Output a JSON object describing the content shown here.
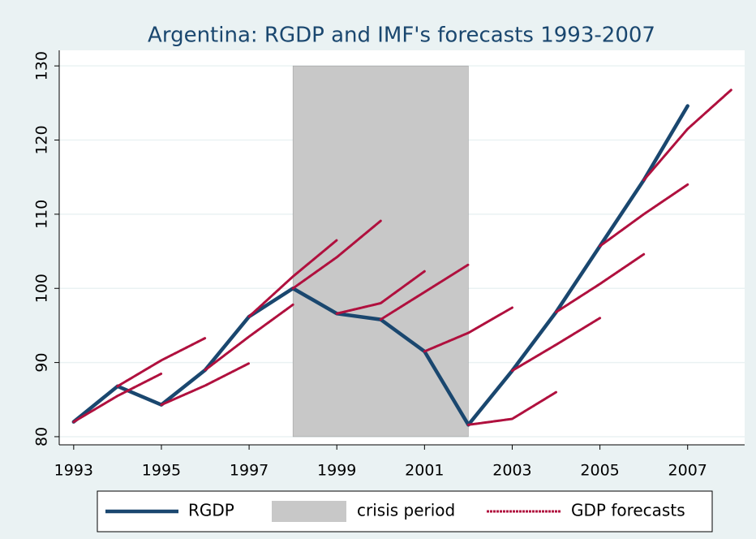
{
  "chart_data": {
    "type": "line",
    "title": "Argentina: RGDP and IMF's forecasts 1993-2007",
    "xlim": [
      1992.67,
      2008.3
    ],
    "ylim": [
      78.9,
      132.1
    ],
    "xticks": [
      1993,
      1995,
      1997,
      1999,
      2001,
      2003,
      2005,
      2007
    ],
    "yticks": [
      80,
      90,
      100,
      110,
      120,
      130
    ],
    "grid": true,
    "shaded": {
      "name": "crisis period",
      "start": 1998,
      "end": 2002,
      "color": "#c8c8c8"
    },
    "series": [
      {
        "name": "RGDP",
        "color": "#1a476f",
        "x": [
          1993,
          1994,
          1995,
          1996,
          1997,
          1998,
          1999,
          2000,
          2001,
          2002,
          2003,
          2004,
          2005,
          2006,
          2007
        ],
        "values": [
          82,
          86.8,
          84.3,
          89,
          96.2,
          100,
          96.6,
          95.8,
          91.5,
          81.6,
          88.9,
          96.8,
          105.7,
          114.6,
          124.6
        ]
      },
      {
        "name": "GDP forecasts",
        "color": "#b0103e",
        "x": [
          1993,
          1994,
          1995,
          null,
          1994,
          1995,
          1996,
          null,
          1995,
          1996,
          1997,
          null,
          1996,
          1997,
          1998,
          null,
          1997,
          1998,
          1999,
          null,
          1998,
          1999,
          2000,
          null,
          1999,
          2000,
          2001,
          null,
          2000,
          2001,
          2002,
          null,
          2001,
          2002,
          2003,
          null,
          2002,
          2003,
          2004,
          null,
          2003,
          2004,
          2005,
          null,
          2004,
          2005,
          2006,
          null,
          2005,
          2006,
          2007,
          null,
          2006,
          2007,
          2008
        ],
        "values": [
          82,
          85.5,
          88.5,
          null,
          86.8,
          90.3,
          93.3,
          null,
          84.3,
          86.9,
          89.9,
          null,
          89,
          93.5,
          97.8,
          null,
          96.2,
          101.6,
          106.5,
          null,
          100,
          104.2,
          109.1,
          null,
          96.6,
          98,
          102.3,
          null,
          95.8,
          99.5,
          103.2,
          null,
          91.5,
          94,
          97.4,
          null,
          81.6,
          82.4,
          86,
          null,
          88.9,
          92.4,
          96,
          null,
          96.8,
          100.6,
          104.6,
          null,
          105.7,
          110,
          114,
          null,
          114.6,
          121.5,
          126.8
        ]
      }
    ]
  }
}
